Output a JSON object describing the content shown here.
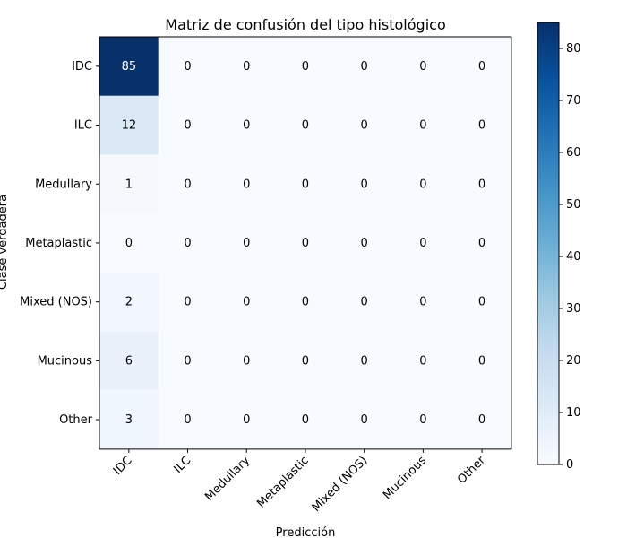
{
  "chart_data": {
    "type": "heatmap",
    "title": "Matriz de confusión del tipo histológico",
    "xlabel": "Predicción",
    "ylabel": "Clase verdadera",
    "row_labels": [
      "IDC",
      "ILC",
      "Medullary",
      "Metaplastic",
      "Mixed (NOS)",
      "Mucinous",
      "Other"
    ],
    "col_labels": [
      "IDC",
      "ILC",
      "Medullary",
      "Metaplastic",
      "Mixed (NOS)",
      "Mucinous",
      "Other"
    ],
    "matrix": [
      [
        85,
        0,
        0,
        0,
        0,
        0,
        0
      ],
      [
        12,
        0,
        0,
        0,
        0,
        0,
        0
      ],
      [
        1,
        0,
        0,
        0,
        0,
        0,
        0
      ],
      [
        0,
        0,
        0,
        0,
        0,
        0,
        0
      ],
      [
        2,
        0,
        0,
        0,
        0,
        0,
        0
      ],
      [
        6,
        0,
        0,
        0,
        0,
        0,
        0
      ],
      [
        3,
        0,
        0,
        0,
        0,
        0,
        0
      ]
    ],
    "colormap": "Blues",
    "vmin": 0,
    "vmax": 85,
    "colorbar_ticks": [
      0,
      10,
      20,
      30,
      40,
      50,
      60,
      70,
      80
    ]
  }
}
